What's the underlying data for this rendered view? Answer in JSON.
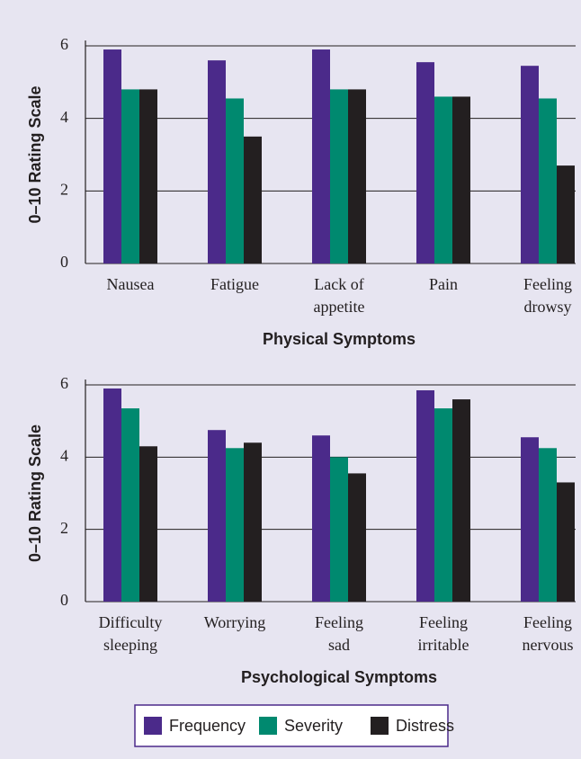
{
  "chart_data": [
    {
      "type": "bar",
      "ylabel": "0–10 Rating Scale",
      "xlabel": "Physical Symptoms",
      "categories": [
        "Nausea",
        "Fatigue",
        "Lack of\nappetite",
        "Pain",
        "Feeling\ndrowsy"
      ],
      "series": [
        {
          "name": "Frequency",
          "color": "#4b2a8a",
          "values": [
            5.9,
            5.6,
            5.9,
            5.55,
            5.45
          ]
        },
        {
          "name": "Severity",
          "color": "#00896f",
          "values": [
            4.8,
            4.55,
            4.8,
            4.6,
            4.55
          ]
        },
        {
          "name": "Distress",
          "color": "#231f20",
          "values": [
            4.8,
            3.5,
            4.8,
            4.6,
            2.7
          ]
        }
      ],
      "ylim": [
        0,
        6
      ],
      "yticks": [
        0,
        2,
        4,
        6
      ],
      "grid": true
    },
    {
      "type": "bar",
      "ylabel": "0–10 Rating Scale",
      "xlabel": "Psychological Symptoms",
      "categories": [
        "Difficulty\nsleeping",
        "Worrying",
        "Feeling\nsad",
        "Feeling\nirritable",
        "Feeling\nnervous"
      ],
      "series": [
        {
          "color": "#4b2a8a",
          "values": [
            5.9,
            4.75,
            4.6,
            5.85,
            4.55
          ]
        },
        {
          "color": "#00896f",
          "values": [
            5.35,
            4.25,
            4.0,
            5.35,
            4.25
          ]
        },
        {
          "color": "#231f20",
          "values": [
            4.3,
            4.4,
            3.55,
            5.6,
            3.3
          ]
        }
      ],
      "ylim": [
        0,
        6
      ],
      "yticks": [
        0,
        2,
        4,
        6
      ],
      "grid": true
    }
  ]
}
